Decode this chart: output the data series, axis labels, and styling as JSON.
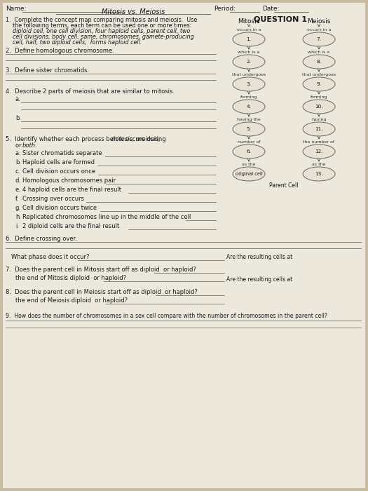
{
  "bg_color": "#c8bba0",
  "paper_color": "#ede8dc",
  "title": "Mitosis vs. Meiosis",
  "period_label": "Period:",
  "date_label": "Date:",
  "name_label": "Name:",
  "question1_title": "QUESTION 1",
  "mitosis_chain": {
    "header": "Mitosis",
    "label1": "occurs in a",
    "node1": "1.",
    "label2": "which is a",
    "node2": "2.",
    "label3": "that undergoes",
    "node3": "3.",
    "label4": "forming",
    "node4": "4.",
    "label5": "having the",
    "node5": "5.",
    "label6": "number of",
    "node6": "6.",
    "label7": "as the",
    "node7": "original cell"
  },
  "meiosis_chain": {
    "header": "Meiosis",
    "label1": "occurs in a",
    "node1": "7.",
    "label2": "which is a",
    "node2": "8.",
    "label3": "that undergoes",
    "node3": "9.",
    "label4": "forming",
    "node4": "10.",
    "label5": "having",
    "node5": "11.",
    "label6": "the number of",
    "node6": "12.",
    "label7": "as the",
    "node7": "13."
  },
  "parent_cell_label": "Parent Cell",
  "oval_color": "#e8e2d4",
  "oval_edge": "#666666",
  "text_color": "#1a1a1a",
  "line_color": "#555555"
}
